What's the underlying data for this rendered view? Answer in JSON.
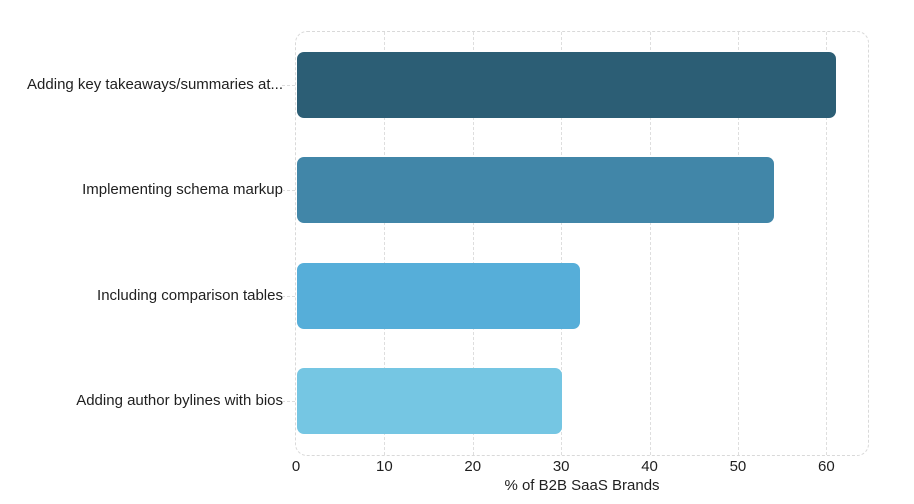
{
  "chart_data": {
    "type": "bar",
    "orientation": "horizontal",
    "title": "",
    "xlabel": "% of B2B SaaS Brands",
    "ylabel": "",
    "categories": [
      "Adding key takeaways/summaries at...",
      "Implementing schema markup",
      "Including comparison tables",
      "Adding author bylines with bios"
    ],
    "values": [
      61,
      54,
      32,
      30
    ],
    "bar_colors": [
      "#2C5E75",
      "#4186A8",
      "#56AED9",
      "#75C6E3"
    ],
    "xticks": [
      0,
      10,
      20,
      30,
      40,
      50,
      60
    ],
    "xlim": [
      0,
      64.6
    ],
    "grid": "vertical-dashed",
    "grid_color": "#DEDEDE",
    "plot_border_color": "#D9D9D9",
    "text_color": "#1F1F1F",
    "background_color": "#FFFFFF",
    "legend": "none"
  }
}
